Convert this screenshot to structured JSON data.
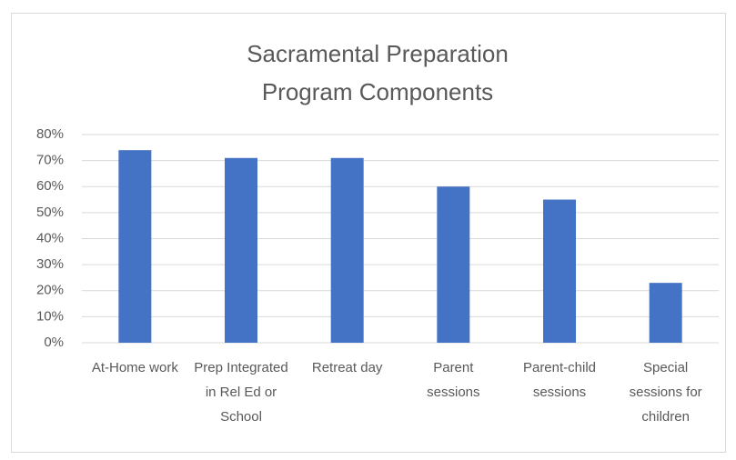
{
  "chart_data": {
    "type": "bar",
    "title": "Sacramental Preparation Program Components",
    "categories": [
      "At-Home work",
      "Prep Integrated in Rel Ed or School",
      "Retreat day",
      "Parent sessions",
      "Parent-child sessions",
      "Special sessions for children"
    ],
    "values": [
      74,
      71,
      71,
      60,
      55,
      23
    ],
    "color": "#4472c4",
    "ylim": [
      0,
      80
    ],
    "yticks": [
      {
        "value": 0,
        "label": "0%"
      },
      {
        "value": 10,
        "label": "10%"
      },
      {
        "value": 20,
        "label": "20%"
      },
      {
        "value": 30,
        "label": "30%"
      },
      {
        "value": 40,
        "label": "40%"
      },
      {
        "value": 50,
        "label": "50%"
      },
      {
        "value": 60,
        "label": "60%"
      },
      {
        "value": 70,
        "label": "70%"
      },
      {
        "value": 80,
        "label": "80%"
      }
    ],
    "grid": true
  }
}
